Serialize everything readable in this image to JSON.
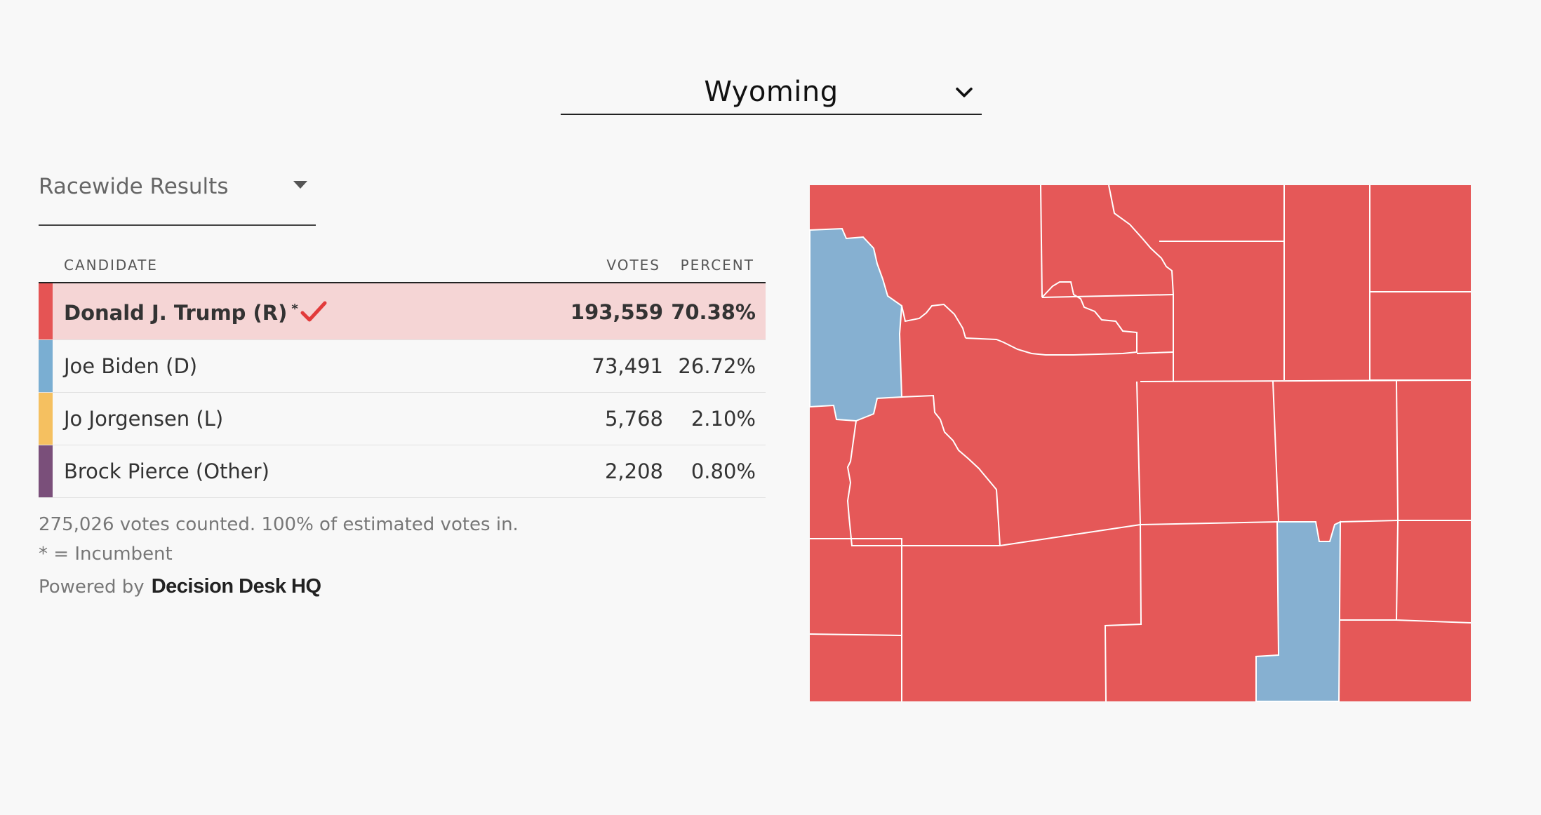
{
  "state_selector": {
    "value": "Wyoming"
  },
  "race_selector": {
    "value": "Racewide Results"
  },
  "table": {
    "headers": {
      "candidate": "CANDIDATE",
      "votes": "VOTES",
      "percent": "PERCENT"
    },
    "rows": [
      {
        "name": "Donald J. Trump (R)",
        "votes": "193,559",
        "percent": "70.38%",
        "color": "#e55454",
        "incumbent_mark": "*",
        "winner": true
      },
      {
        "name": "Joe Biden (D)",
        "votes": "73,491",
        "percent": "26.72%",
        "color": "#7aaed2"
      },
      {
        "name": "Jo Jorgensen (L)",
        "votes": "5,768",
        "percent": "2.10%",
        "color": "#f5c060"
      },
      {
        "name": "Brock Pierce (Other)",
        "votes": "2,208",
        "percent": "0.80%",
        "color": "#7a4f7a"
      }
    ]
  },
  "summary": "275,026 votes counted. 100% of estimated votes in.",
  "incumbent_note": "* = Incumbent",
  "powered_by": {
    "label": "Powered by",
    "brand": "Decision Desk HQ"
  },
  "map": {
    "colors": {
      "republican": "#e55858",
      "democrat": "#86b0d1",
      "border": "#ffffff"
    }
  }
}
